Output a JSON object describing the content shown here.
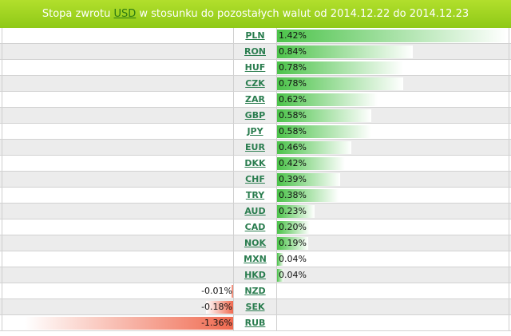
{
  "header": {
    "prefix": "Stopa zwrotu",
    "base": "USD",
    "suffix": "w stosunku do pozostałych walut od 2014.12.22 do 2014.12.23"
  },
  "colors": {
    "header_bg": "#9fd31f",
    "positive_bar": "#4cc34a",
    "negative_bar": "#f06a50",
    "link": "#2a7d4f"
  },
  "chart_data": {
    "type": "bar",
    "categories": [
      "PLN",
      "RON",
      "HUF",
      "CZK",
      "ZAR",
      "GBP",
      "JPY",
      "EUR",
      "DKK",
      "CHF",
      "TRY",
      "AUD",
      "CAD",
      "NOK",
      "MXN",
      "HKD",
      "NZD",
      "SEK",
      "RUB"
    ],
    "values": [
      1.42,
      0.84,
      0.78,
      0.78,
      0.62,
      0.58,
      0.58,
      0.46,
      0.42,
      0.39,
      0.38,
      0.23,
      0.2,
      0.19,
      0.04,
      0.04,
      -0.01,
      -0.18,
      -1.36
    ],
    "labels": [
      "1.42%",
      "0.84%",
      "0.78%",
      "0.78%",
      "0.62%",
      "0.58%",
      "0.58%",
      "0.46%",
      "0.42%",
      "0.39%",
      "0.38%",
      "0.23%",
      "0.20%",
      "0.19%",
      "0.04%",
      "0.04%",
      "-0.01%",
      "-0.18%",
      "-1.36%"
    ]
  }
}
